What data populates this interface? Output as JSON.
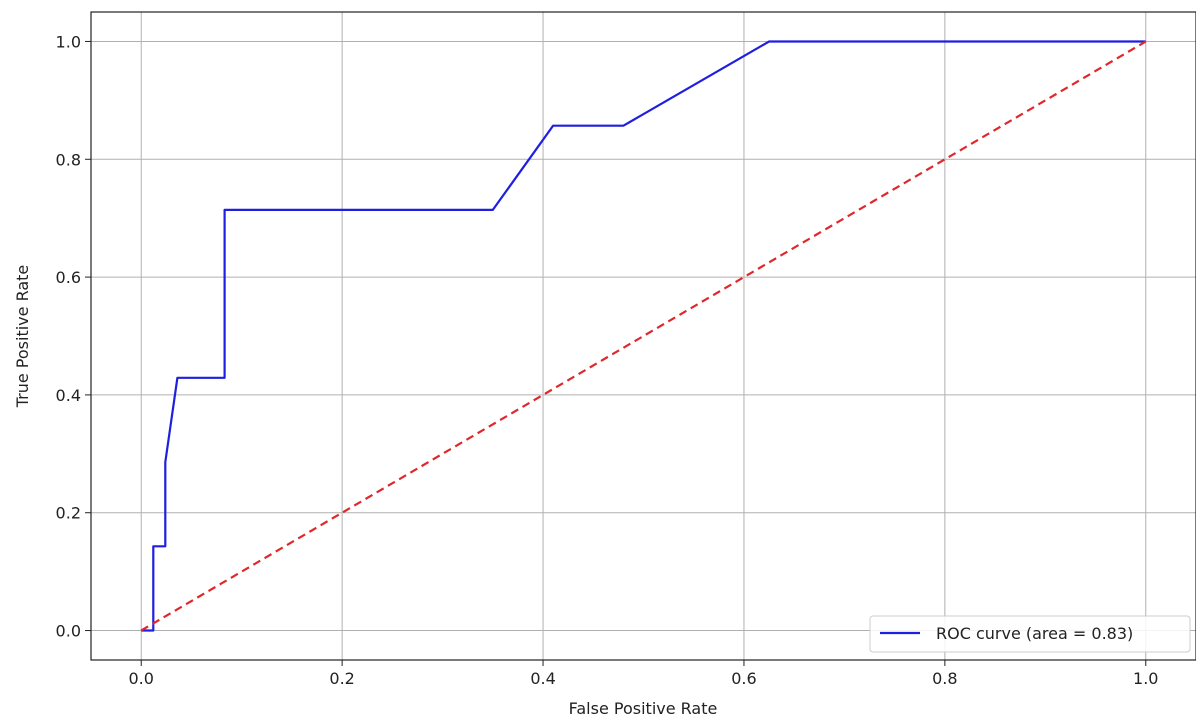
{
  "chart_data": {
    "type": "line",
    "xlabel": "False Positive Rate",
    "ylabel": "True Positive Rate",
    "xlim": [
      -0.05,
      1.05
    ],
    "ylim": [
      -0.05,
      1.05
    ],
    "x_ticks": [
      0.0,
      0.2,
      0.4,
      0.6,
      0.8,
      1.0
    ],
    "y_ticks": [
      0.0,
      0.2,
      0.4,
      0.6,
      0.8,
      1.0
    ],
    "x_tick_labels": [
      "0.0",
      "0.2",
      "0.4",
      "0.6",
      "0.8",
      "1.0"
    ],
    "y_tick_labels": [
      "0.0",
      "0.2",
      "0.4",
      "0.6",
      "0.8",
      "1.0"
    ],
    "grid": true,
    "legend_position": "lower-right",
    "series": [
      {
        "name": "ROC curve (area = 0.83)",
        "color": "#1f1fe0",
        "style": "solid",
        "x": [
          0.0,
          0.012,
          0.012,
          0.024,
          0.024,
          0.036,
          0.036,
          0.083,
          0.083,
          0.35,
          0.41,
          0.48,
          0.625,
          1.0
        ],
        "y": [
          0.0,
          0.0,
          0.143,
          0.143,
          0.286,
          0.429,
          0.429,
          0.429,
          0.714,
          0.714,
          0.857,
          0.857,
          1.0,
          1.0
        ]
      },
      {
        "color": "#e0282c",
        "style": "dashed",
        "x": [
          0.0,
          1.0
        ],
        "y": [
          0.0,
          1.0
        ]
      }
    ]
  }
}
